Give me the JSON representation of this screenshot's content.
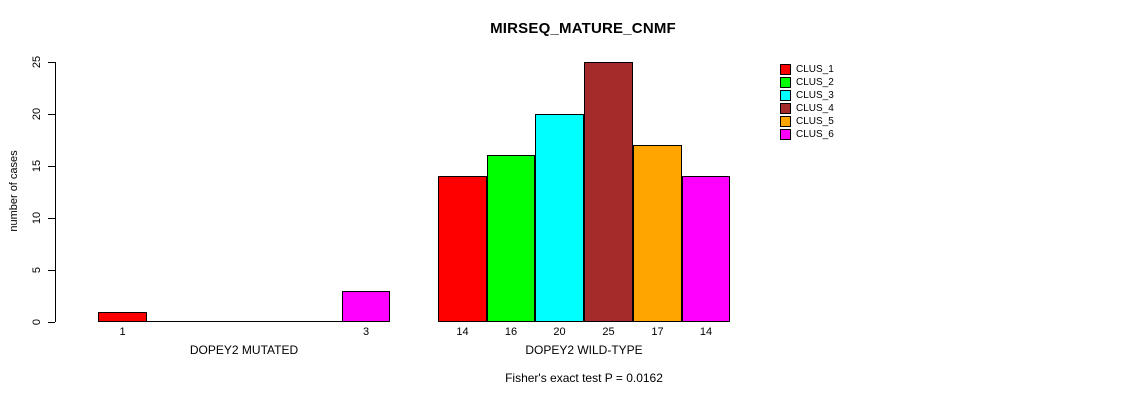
{
  "chart_data": {
    "type": "bar",
    "title": "MIRSEQ_MATURE_CNMF",
    "ylabel": "number of cases",
    "ylim": [
      0,
      25
    ],
    "yticks": [
      0,
      5,
      10,
      15,
      20,
      25
    ],
    "grid": false,
    "legend_position": "right",
    "legend": [
      {
        "label": "CLUS_1",
        "color": "#FF0000"
      },
      {
        "label": "CLUS_2",
        "color": "#00FF00"
      },
      {
        "label": "CLUS_3",
        "color": "#00FFFF"
      },
      {
        "label": "CLUS_4",
        "color": "#A52A2A"
      },
      {
        "label": "CLUS_5",
        "color": "#FFA500"
      },
      {
        "label": "CLUS_6",
        "color": "#FF00FF"
      }
    ],
    "groups": [
      {
        "label": "DOPEY2 MUTATED",
        "bars": [
          {
            "cluster": "CLUS_1",
            "value": 1,
            "value_label": "1",
            "color": "#FF0000"
          },
          {
            "cluster": "CLUS_2",
            "value": 0,
            "value_label": "",
            "color": "#00FF00"
          },
          {
            "cluster": "CLUS_3",
            "value": 0,
            "value_label": "",
            "color": "#00FFFF"
          },
          {
            "cluster": "CLUS_4",
            "value": 0,
            "value_label": "",
            "color": "#A52A2A"
          },
          {
            "cluster": "CLUS_5",
            "value": 0,
            "value_label": "",
            "color": "#FFA500"
          },
          {
            "cluster": "CLUS_6",
            "value": 3,
            "value_label": "3",
            "color": "#FF00FF"
          }
        ]
      },
      {
        "label": "DOPEY2 WILD-TYPE",
        "bars": [
          {
            "cluster": "CLUS_1",
            "value": 14,
            "value_label": "14",
            "color": "#FF0000"
          },
          {
            "cluster": "CLUS_2",
            "value": 16,
            "value_label": "16",
            "color": "#00FF00"
          },
          {
            "cluster": "CLUS_3",
            "value": 20,
            "value_label": "20",
            "color": "#00FFFF"
          },
          {
            "cluster": "CLUS_4",
            "value": 25,
            "value_label": "25",
            "color": "#A52A2A"
          },
          {
            "cluster": "CLUS_5",
            "value": 17,
            "value_label": "17",
            "color": "#FFA500"
          },
          {
            "cluster": "CLUS_6",
            "value": 14,
            "value_label": "14",
            "color": "#FF00FF"
          }
        ]
      }
    ],
    "annotation": "Fisher's exact test P = 0.0162"
  }
}
